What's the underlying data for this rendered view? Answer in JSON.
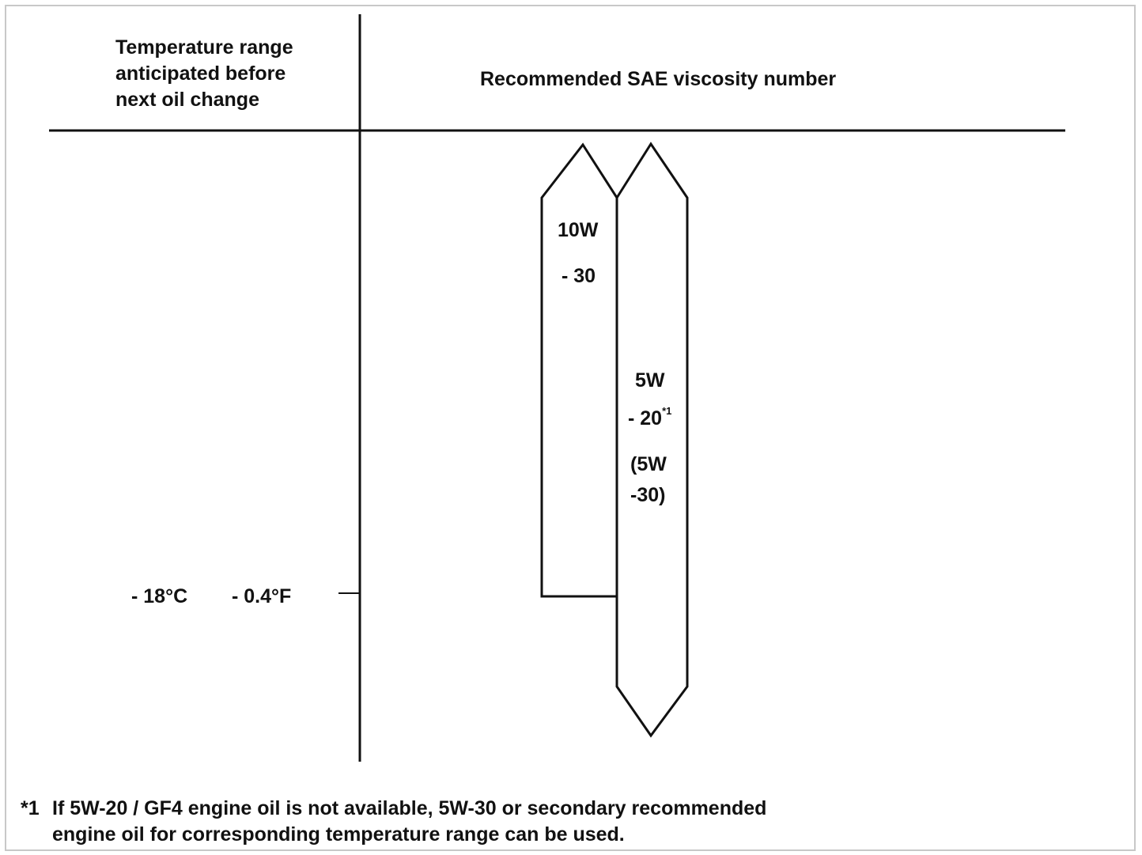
{
  "header": {
    "left_lines": [
      "Temperature range",
      "anticipated before",
      "next oil change"
    ],
    "right": "Recommended SAE viscosity number"
  },
  "temperature_mark": {
    "celsius": "- 18°C",
    "fahrenheit": "- 0.4°F"
  },
  "oils": [
    {
      "name": "10W-30",
      "label_lines": [
        "10W",
        "- 30"
      ],
      "range": "down to -18°C / -0.4°F"
    },
    {
      "name": "5W-20",
      "label_lines": [
        "5W",
        "- 20",
        "(5W",
        "-30)"
      ],
      "footnote_ref": "*1",
      "range": "all temperatures"
    }
  ],
  "footnote": {
    "marker": "*1",
    "line1": "If 5W-20 / GF4 engine oil is not available, 5W-30 or secondary recommended",
    "line2": "engine oil for corresponding temperature range can be used."
  }
}
